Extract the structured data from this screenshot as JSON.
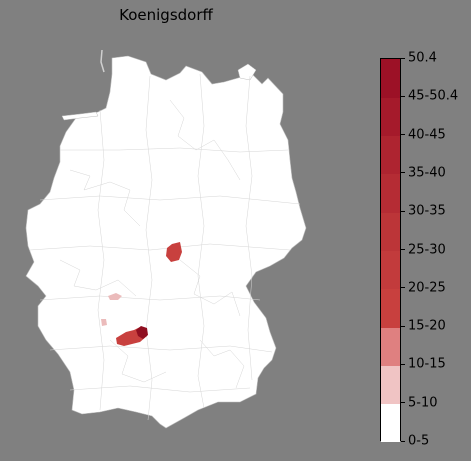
{
  "title": "Koenigsdorff",
  "map": {
    "region": "Germany",
    "subdivision": "districts",
    "base_color": "#ffffff",
    "highlighted_areas": [
      {
        "id": "thuringia-area",
        "class": "15-20",
        "color": "#c8403e"
      },
      {
        "id": "frankfurt-area",
        "class": "5-10",
        "color": "#ebbbbb"
      },
      {
        "id": "saarland-area",
        "class": "5-10",
        "color": "#ebbbbb"
      },
      {
        "id": "stuttgart-area",
        "class": "15-20",
        "color": "#c8403e"
      },
      {
        "id": "stuttgart-core-area",
        "class": "40-45",
        "color": "#8f0e20"
      }
    ]
  },
  "legend": {
    "max_label": "50.4",
    "bins": [
      {
        "label": "0-5",
        "color": "#ffffff"
      },
      {
        "label": "5-10",
        "color": "#f0c4c4"
      },
      {
        "label": "10-15",
        "color": "#df8080"
      },
      {
        "label": "15-20",
        "color": "#c8403e"
      },
      {
        "label": "20-25",
        "color": "#c23b3c"
      },
      {
        "label": "25-30",
        "color": "#bc3538"
      },
      {
        "label": "30-35",
        "color": "#b52c34"
      },
      {
        "label": "35-40",
        "color": "#ae2430"
      },
      {
        "label": "40-45",
        "color": "#a51a2b"
      },
      {
        "label": "45-50.4",
        "color": "#9c1126"
      }
    ],
    "top_color": "#92091f"
  }
}
